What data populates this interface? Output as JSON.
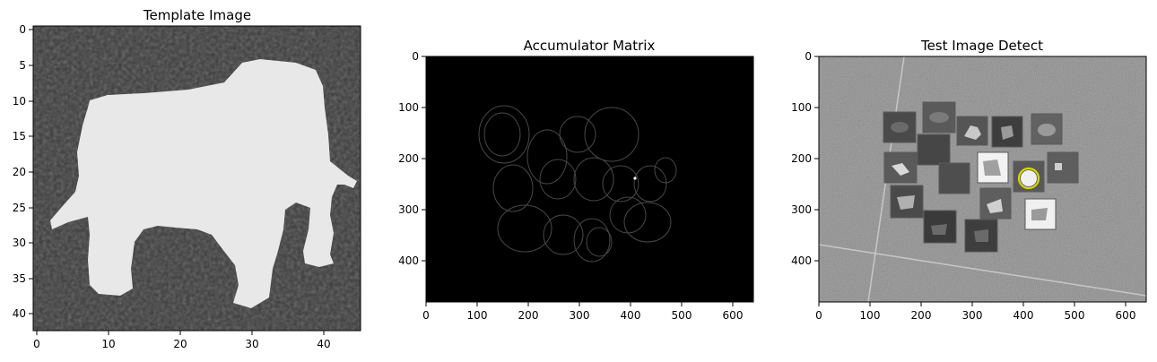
{
  "panels": [
    {
      "title": "Template Image",
      "x_ticks": [
        "0",
        "10",
        "20",
        "30",
        "40"
      ],
      "y_ticks": [
        "0",
        "5",
        "10",
        "15",
        "20",
        "25",
        "30",
        "35",
        "40"
      ]
    },
    {
      "title": "Accumulator Matrix",
      "x_ticks": [
        "0",
        "100",
        "200",
        "300",
        "400",
        "500",
        "600"
      ],
      "y_ticks": [
        "0",
        "100",
        "200",
        "300",
        "400"
      ]
    },
    {
      "title": "Test Image Detect",
      "x_ticks": [
        "0",
        "100",
        "200",
        "300",
        "400",
        "500",
        "600"
      ],
      "y_ticks": [
        "0",
        "100",
        "200",
        "300",
        "400"
      ]
    }
  ],
  "colors": {
    "template_background": "#3a3a3a",
    "template_elephant": "#e6e6e6",
    "accumulator_background": "#000000",
    "test_background": "#8a8a8a",
    "detection_circle": "#d8d800"
  }
}
